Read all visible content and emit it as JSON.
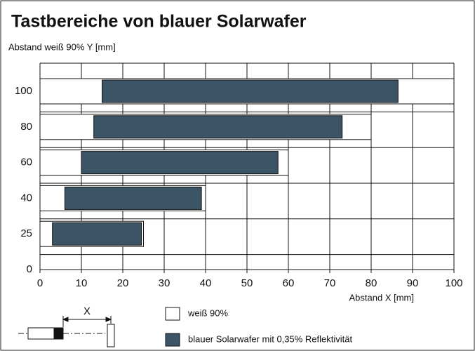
{
  "chart_data": {
    "type": "range_bar",
    "title": "Tastbereiche von blauer Solarwafer",
    "y_label": "Abstand weiß 90% Y [mm]",
    "x_label": "Abstand X [mm]",
    "categories": [
      "100",
      "80",
      "60",
      "40",
      "25",
      "0"
    ],
    "series": [
      {
        "name": "weiß 90%",
        "color": "#ffffff",
        "start": [
          0,
          0,
          0,
          0,
          0,
          null
        ],
        "end": [
          100,
          80,
          60,
          40,
          25,
          null
        ]
      },
      {
        "name": "blauer Solarwafer mit 0,35% Reflektivität",
        "color": "#3c5566",
        "start": [
          15,
          13,
          10,
          6,
          3,
          null
        ],
        "end": [
          86.5,
          73,
          57.5,
          39,
          24.5,
          null
        ]
      }
    ],
    "xlim": [
      0,
      100
    ],
    "xticks": [
      0,
      10,
      20,
      30,
      40,
      50,
      60,
      70,
      80,
      90,
      100
    ],
    "grid": true,
    "diagram_label": "X"
  }
}
